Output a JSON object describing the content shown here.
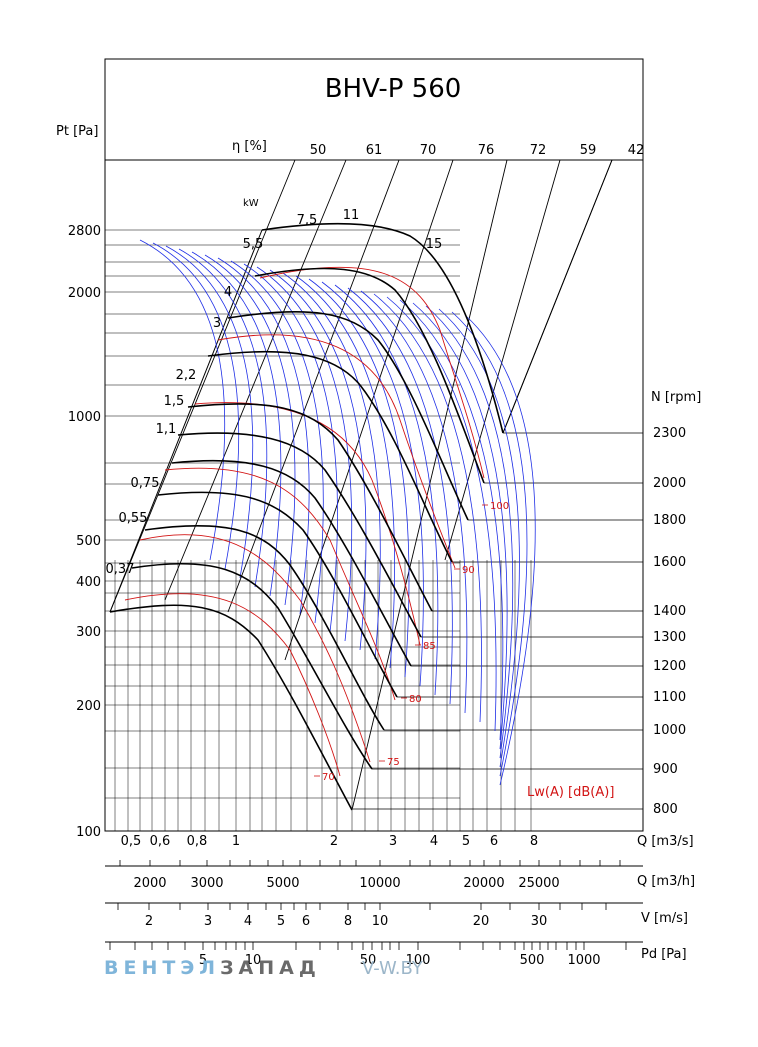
{
  "chart_data": {
    "type": "line",
    "title": "BHV-P 560",
    "ylabel": "Pt [Pa]",
    "eta_label": "η [%]",
    "kw_label": "kW",
    "n_label": "N [rpm]",
    "lw_label": "Lw(A) [dB(A)]",
    "y_ticks": [
      "2800",
      "2000",
      "1000",
      "500",
      "400",
      "300",
      "200",
      "100"
    ],
    "eta_values": [
      "50",
      "61",
      "70",
      "76",
      "72",
      "59",
      "42"
    ],
    "power_kw": [
      "7,5",
      "11",
      "5,5",
      "15",
      "4",
      "3",
      "2,2",
      "1,5",
      "1,1",
      "0,75",
      "0,55",
      "0,37"
    ],
    "rpm_values": [
      "2300",
      "2000",
      "1800",
      "1600",
      "1400",
      "1300",
      "1200",
      "1100",
      "1000",
      "900",
      "800"
    ],
    "sound_levels": [
      "100",
      "90",
      "85",
      "80",
      "75",
      "70"
    ],
    "axis_q_m3s": {
      "label": "Q [m3/s]",
      "ticks": [
        "0,5",
        "0,6",
        "0,8",
        "1",
        "2",
        "3",
        "4",
        "5",
        "6",
        "8"
      ]
    },
    "axis_q_m3h": {
      "label": "Q [m3/h]",
      "ticks": [
        "2000",
        "3000",
        "5000",
        "10000",
        "20000",
        "25000"
      ]
    },
    "axis_v": {
      "label": "V [m/s]",
      "ticks": [
        "2",
        "3",
        "4",
        "5",
        "6",
        "8",
        "10",
        "20",
        "30"
      ]
    },
    "axis_pd": {
      "label": "Pd [Pa]",
      "ticks": [
        "5",
        "10",
        "50",
        "100",
        "500",
        "1000"
      ]
    },
    "yscale": "log",
    "xscale": "log",
    "colors": {
      "fan_curve": "#000000",
      "power_lines": "#1e2ee6",
      "sound_lines": "#d21414",
      "grid": "#000000"
    }
  },
  "watermark": {
    "part1": "ВЕНТЭЛ",
    "part2": "ЗАПАД",
    "site": "V-W.BY"
  }
}
